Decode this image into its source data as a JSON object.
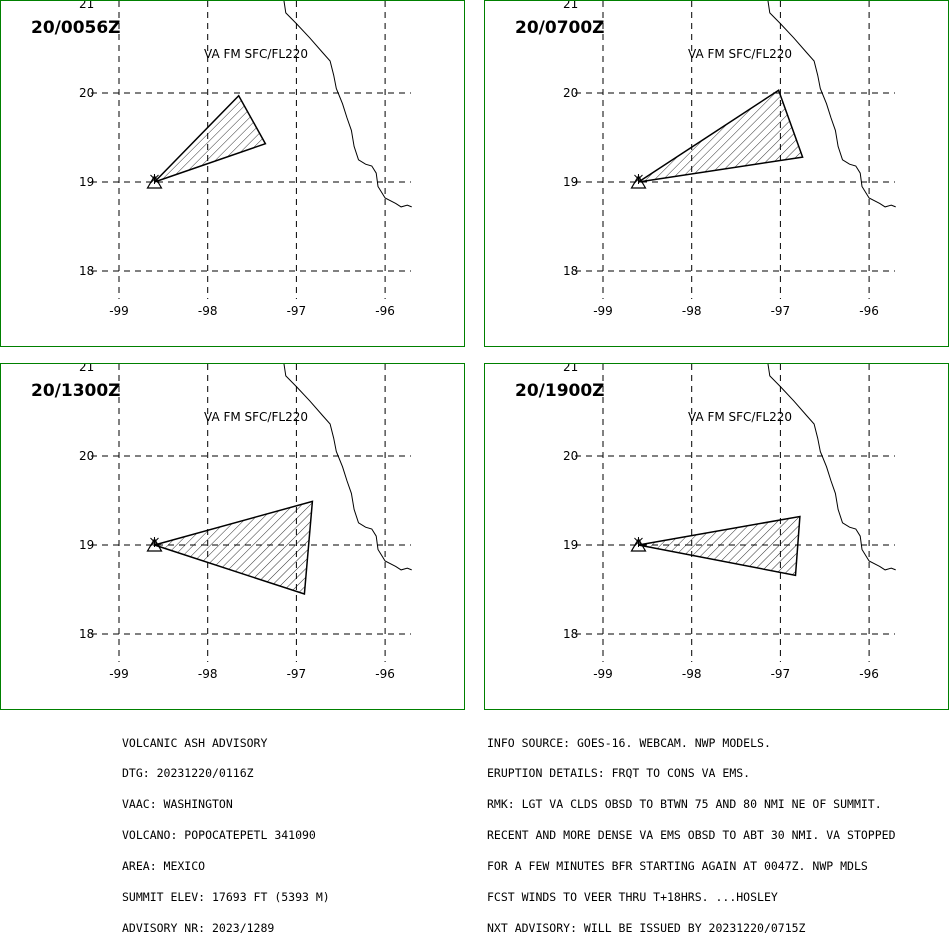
{
  "map": {
    "lon_ticks": [
      -99,
      -98,
      -97,
      -96
    ],
    "lat_ticks": [
      18,
      19,
      20,
      21
    ],
    "lon_labels": [
      "-99",
      "-98",
      "-97",
      "-96"
    ],
    "lat_labels": [
      "18",
      "19",
      "20",
      "21"
    ],
    "grid": "dashed",
    "volcano_marker": "triangle-icon",
    "colors": {
      "frame": "#008000",
      "lines": "#000000",
      "background": "#ffffff"
    }
  },
  "panels": [
    {
      "id": "p1",
      "time": "20/0056Z",
      "label": "VA FM SFC/FL220",
      "ash_polygon": [
        [
          -98.6,
          19.0
        ],
        [
          -97.65,
          19.97
        ],
        [
          -97.35,
          19.43
        ]
      ]
    },
    {
      "id": "p2",
      "time": "20/0700Z",
      "label": "VA FM SFC/FL220",
      "ash_polygon": [
        [
          -98.6,
          19.0
        ],
        [
          -97.02,
          20.03
        ],
        [
          -96.75,
          19.28
        ]
      ]
    },
    {
      "id": "p3",
      "time": "20/1300Z",
      "label": "VA FM SFC/FL220",
      "ash_polygon": [
        [
          -98.6,
          19.0
        ],
        [
          -96.82,
          19.49
        ],
        [
          -96.91,
          18.45
        ]
      ]
    },
    {
      "id": "p4",
      "time": "20/1900Z",
      "label": "VA FM SFC/FL220",
      "ash_polygon": [
        [
          -98.6,
          19.0
        ],
        [
          -96.78,
          19.32
        ],
        [
          -96.83,
          18.66
        ]
      ]
    }
  ],
  "advisory": {
    "left": [
      "VOLCANIC ASH ADVISORY",
      "DTG: 20231220/0116Z",
      "VAAC: WASHINGTON",
      "VOLCANO: POPOCATEPETL 341090",
      "AREA: MEXICO",
      "SUMMIT ELEV: 17693 FT (5393 M)",
      "ADVISORY NR: 2023/1289"
    ],
    "right": [
      "INFO SOURCE: GOES-16. WEBCAM. NWP MODELS.",
      "ERUPTION DETAILS: FRQT TO CONS VA EMS.",
      "RMK: LGT VA CLDS OBSD TO BTWN 75 AND 80 NMI NE OF SUMMIT.",
      "RECENT AND MORE DENSE VA EMS OBSD TO ABT 30 NMI. VA STOPPED",
      "FOR A FEW MINUTES BFR STARTING AGAIN AT 0047Z. NWP MDLS",
      "FCST WINDS TO VEER THRU T+18HRS. ...HOSLEY",
      "NXT ADVISORY: WILL BE ISSUED BY 20231220/0715Z"
    ]
  }
}
